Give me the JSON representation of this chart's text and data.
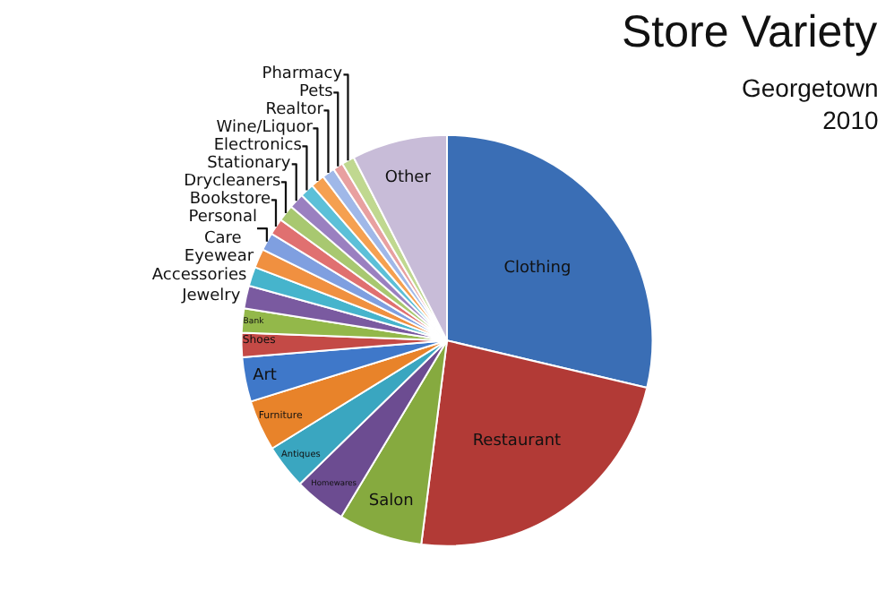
{
  "chart_data": {
    "type": "pie",
    "title": "Store Variety",
    "subtitle": "Georgetown\n2010",
    "categories": [
      "Clothing",
      "Restaurant",
      "Salon",
      "Homewares",
      "Antiques",
      "Furniture",
      "Art",
      "Shoes",
      "Bank",
      "Jewelry",
      "Accessories",
      "Eyewear",
      "Personal\nCare",
      "Bookstore",
      "Drycleaners",
      "Stationary",
      "Electronics",
      "Wine/Liquor",
      "Realtor",
      "Pets",
      "Pharmacy",
      "Other"
    ],
    "values": [
      28.7,
      23.3,
      6.6,
      4.1,
      3.5,
      4.0,
      3.5,
      1.9,
      1.9,
      1.8,
      1.5,
      1.5,
      1.4,
      1.3,
      1.3,
      1.2,
      1.1,
      1.1,
      1.0,
      0.8,
      1.0,
      7.5
    ],
    "colors": [
      "#3a6eb5",
      "#b23a36",
      "#86aa3f",
      "#6c4c91",
      "#3aa6c0",
      "#e8832a",
      "#3f78c9",
      "#c44a46",
      "#93b84a",
      "#7a5aa0",
      "#46b4cc",
      "#f09040",
      "#7f9fe0",
      "#e07070",
      "#a8c870",
      "#9a80c0",
      "#5cc0d8",
      "#f5a050",
      "#a0b8e8",
      "#e8a0a0",
      "#c0d890",
      "#c8bcd8"
    ],
    "legend": false
  }
}
